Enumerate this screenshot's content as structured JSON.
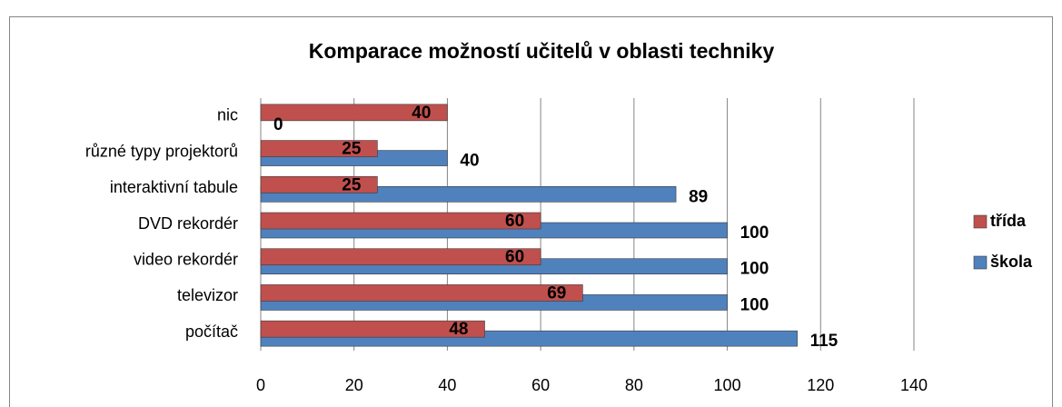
{
  "chart_data": {
    "type": "bar",
    "orientation": "horizontal",
    "title": "Komparace možností učitelů v oblasti techniky",
    "categories": [
      "nic",
      "různé typy projektorů",
      "interaktivní tabule",
      "DVD rekordér",
      "video rekordér",
      "televizor",
      "počítač"
    ],
    "series": [
      {
        "name": "třída",
        "color": "#c0504d",
        "values": [
          40,
          25,
          25,
          60,
          60,
          69,
          48
        ]
      },
      {
        "name": "škola",
        "color": "#4f81bd",
        "values": [
          0,
          40,
          89,
          100,
          100,
          100,
          115
        ]
      }
    ],
    "xlim": [
      0,
      140
    ],
    "xticks": [
      0,
      20,
      40,
      60,
      80,
      100,
      120,
      140
    ],
    "grid": true,
    "legend": "right"
  }
}
